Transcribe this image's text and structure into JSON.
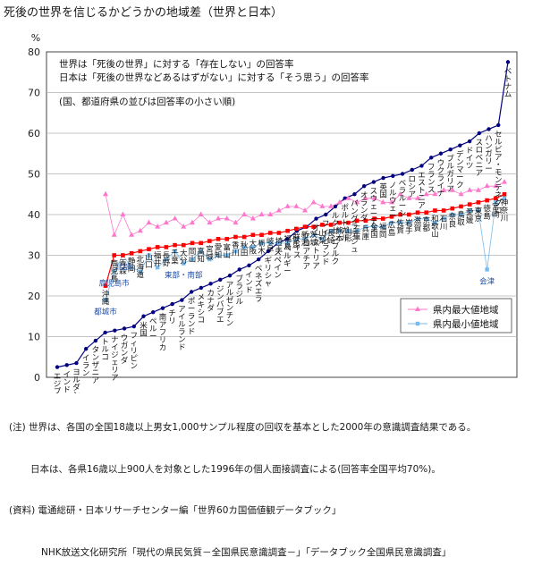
{
  "page_title": "死後の世界を信じるかどうかの地域差（世界と日本）",
  "chart_data": {
    "type": "line",
    "title": "死後の世界を信じるかどうかの地域差（世界と日本）",
    "ylabel": "%",
    "ylim": [
      0,
      80
    ],
    "yticks": [
      0,
      10,
      20,
      30,
      40,
      50,
      60,
      70,
      80
    ],
    "grid": true,
    "description_lines": [
      "世界は「死後の世界」に対する「存在しない」の回答率",
      "日本は「死後の世界などあるはずがない」に対する「そう思う」の回答率",
      "(国、都道府県の並びは回答率の小さい順)"
    ],
    "legend_placement": "bottom-right",
    "series": [
      {
        "name": "世界",
        "color": "#000080",
        "values": [
          2.5,
          3,
          3.5,
          7,
          9,
          11,
          11.5,
          12,
          12.5,
          15,
          16,
          17,
          18,
          19,
          21,
          22,
          23,
          24,
          25,
          26.5,
          27.5,
          29,
          31,
          33,
          34,
          36,
          37,
          39,
          40,
          42,
          44,
          45,
          47,
          48,
          49,
          49.5,
          50,
          51,
          52,
          54,
          55,
          56,
          57,
          58,
          60,
          61,
          62,
          77.5
        ]
      },
      {
        "name": "日本",
        "color": "#ff0000",
        "values": [
          22.5,
          30,
          30,
          30.5,
          31,
          31.5,
          32,
          32,
          32.5,
          32.5,
          33,
          33,
          33.5,
          34,
          34,
          34.5,
          34.5,
          35,
          35,
          35.5,
          35.5,
          36,
          36.5,
          37,
          37,
          37.5,
          37.5,
          38,
          38,
          38.5,
          38.5,
          39,
          39,
          39.5,
          40,
          40,
          40.5,
          40.5,
          41,
          41,
          41.5,
          42,
          42.5,
          43,
          43.5,
          44,
          45
        ]
      },
      {
        "name": "県内最大値地域",
        "color": "#ff77cc",
        "values": [
          45,
          35,
          40,
          35,
          36,
          38,
          37,
          38,
          39,
          37,
          38,
          40,
          38,
          39,
          39,
          38,
          40,
          39,
          40,
          40,
          41,
          42,
          42,
          41,
          43,
          42,
          42,
          43,
          44,
          43,
          44,
          44,
          43,
          43,
          45,
          44,
          44,
          45,
          45,
          46,
          46,
          45,
          46,
          46,
          47,
          47,
          48
        ]
      },
      {
        "name": "県内最小値地域",
        "color": "#77bbee",
        "values": [
          19,
          26,
          30,
          27,
          26,
          30,
          27,
          29,
          31,
          28,
          29,
          31,
          29,
          30,
          30,
          31,
          32,
          32,
          33,
          33,
          33,
          33,
          34,
          34,
          35,
          34,
          36,
          36,
          36,
          36,
          37,
          37,
          37,
          38,
          38,
          38,
          39,
          39,
          38,
          39,
          40,
          40,
          41,
          41,
          26.5,
          43,
          44
        ]
      }
    ],
    "world_labels": [
      "エジプト",
      "インドネシア",
      "ヨルダン",
      "イラン",
      "タンザニア",
      "トルコ",
      "ナイジェリア",
      "ウガンダ",
      "フィリピン",
      "米国",
      "ペルー",
      "南アフリカ",
      "チリ",
      "アイルランド",
      "ポーランド",
      "メキシコ",
      "カナダ",
      "ジンバブエ",
      "アルゼンチン",
      "ブラジル",
      "インド",
      "ベネズエラ",
      "ギリシャ",
      "スペイン",
      "ベルギー",
      "スイス",
      "クロアチア",
      "オーストリア",
      "フィンランド",
      "ルクセンブルク",
      "ポルトガル",
      "バングラデシュ",
      "オランダ",
      "スウェーデン",
      "英国",
      "ノルウェー",
      "ベラルーシ",
      "ロシア",
      "エストニア",
      "フランス",
      "ウクライナ",
      "ブルガリア",
      "デンマーク",
      "ドイツ",
      "スロベニア",
      "ハンガリー",
      "セルビア・モンテネグロ",
      "ベトナム"
    ],
    "japan_labels": [
      "沖縄",
      "鹿児島",
      "青森",
      "静岡",
      "北海道",
      "山口",
      "福井",
      "長野",
      "千葉",
      "大分",
      "岡山",
      "高知",
      "宮城",
      "愛知",
      "富山",
      "香川",
      "秋田",
      "大阪",
      "栃木",
      "岐阜",
      "埼玉",
      "福島",
      "群馬",
      "新潟",
      "茨城",
      "山梨",
      "長崎",
      "熊本",
      "山形",
      "三重",
      "兵庫",
      "全国",
      "福岡",
      "広島",
      "佐賀",
      "岩手",
      "滋賀",
      "京都",
      "和歌山",
      "石川",
      "奈良",
      "鳥取",
      "愛媛",
      "東京",
      "徳島",
      "宮崎",
      "神奈川"
    ],
    "annotations": [
      "都城市",
      "鹿児島市",
      "北部",
      "東部・南部",
      "会津"
    ],
    "legend": [
      "県内最大値地域",
      "県内最小値地域"
    ]
  },
  "notes": [
    "(注) 世界は、各国の全国18歳以上男女1,000サンプル程度の回収を基本とした2000年の意識調査結果である。",
    "日本は、各県16歳以上900人を対象とした1996年の個人面接調査による(回答率全国平均70%)。",
    "(資料) 電通総研・日本リサーチセンター編「世界60カ国価値観データブック」",
    "NHK放送文化研究所「現代の県民気質－全国県民意識調査－」「データブック全国県民意識調査」"
  ]
}
